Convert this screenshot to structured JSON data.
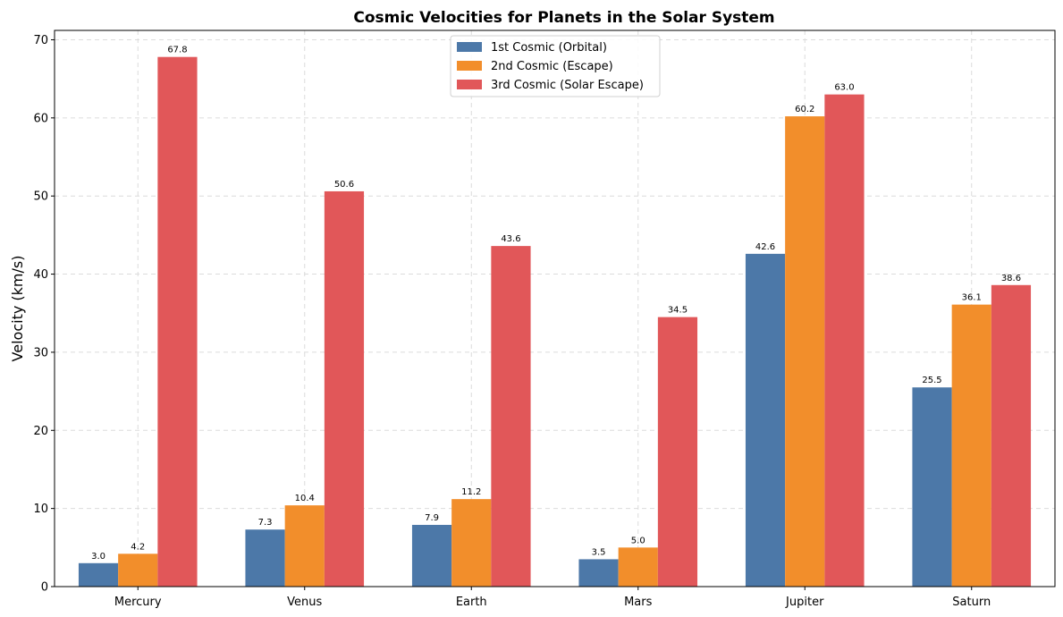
{
  "chart_data": {
    "type": "bar",
    "title": "Cosmic Velocities for Planets in the Solar System",
    "xlabel": "",
    "ylabel": "Velocity (km/s)",
    "categories": [
      "Mercury",
      "Venus",
      "Earth",
      "Mars",
      "Jupiter",
      "Saturn"
    ],
    "series": [
      {
        "name": "1st Cosmic (Orbital)",
        "color": "#4c78a8",
        "values": [
          3.0,
          7.3,
          7.9,
          3.5,
          42.6,
          25.5
        ]
      },
      {
        "name": "2nd Cosmic (Escape)",
        "color": "#f28e2b",
        "values": [
          4.2,
          10.4,
          11.2,
          5.0,
          60.2,
          36.1
        ]
      },
      {
        "name": "3rd Cosmic (Solar Escape)",
        "color": "#e15759",
        "values": [
          67.8,
          50.6,
          43.6,
          34.5,
          63.0,
          38.6
        ]
      }
    ],
    "ylim": [
      0,
      71.2
    ],
    "yticks": [
      0,
      10,
      20,
      30,
      40,
      50,
      60,
      70
    ],
    "grid": true,
    "legend": "upper-center"
  }
}
